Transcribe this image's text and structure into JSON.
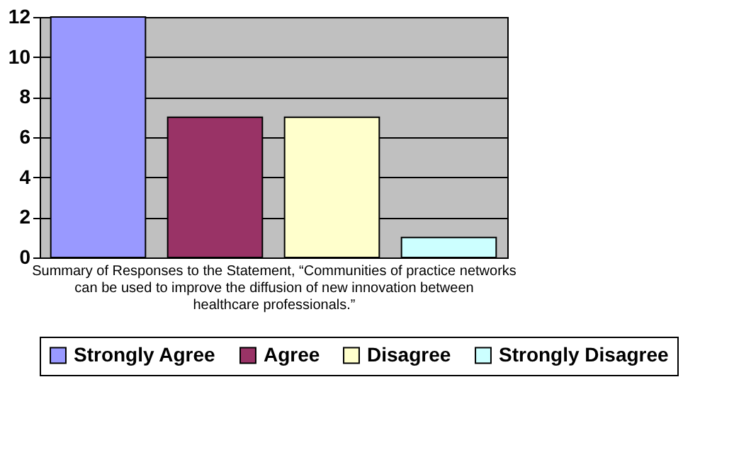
{
  "chart_data": {
    "type": "bar",
    "categories": [
      null
    ],
    "xlabel": "Summary of Responses to the Statement, “Communities of practice networks can be used to improve the diffusion of new innovation between healthcare professionals.”",
    "series": [
      {
        "name": "Strongly Agree",
        "color": "#9999ff",
        "values": [
          12
        ]
      },
      {
        "name": "Agree",
        "color": "#993366",
        "values": [
          7
        ]
      },
      {
        "name": "Disagree",
        "color": "#ffffcc",
        "values": [
          7
        ]
      },
      {
        "name": "Strongly Disagree",
        "color": "#ccffff",
        "values": [
          1
        ]
      }
    ],
    "ylim": [
      0,
      12
    ],
    "yticks": [
      0,
      2,
      4,
      6,
      8,
      10,
      12
    ],
    "grid": "y",
    "legend": "bottom"
  }
}
